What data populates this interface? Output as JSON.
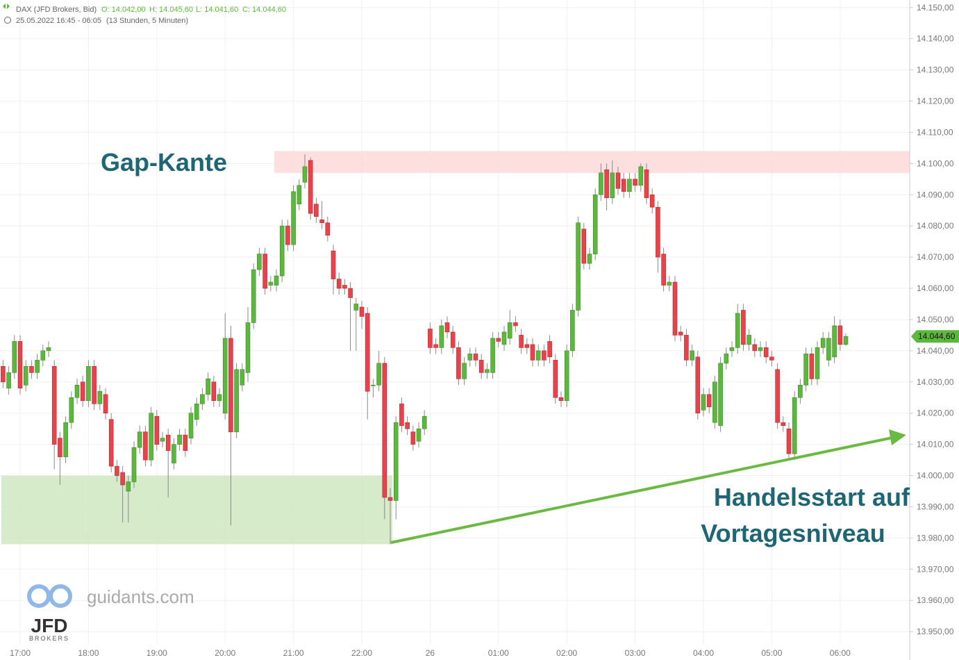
{
  "chart_data": {
    "type": "candlestick",
    "title": "DAX (JFD Brokers, Bid)",
    "ohlc_labels": [
      "O: 14.042,00",
      "H: 14.045,60",
      "L: 14.041,60",
      "C: 14.044,60"
    ],
    "period": "25.05.2022 16:45 - 06:05",
    "duration": "(13 Stunden, 5 Minuten)",
    "last_label": "14.044,60",
    "up_color": "#5cb83c",
    "down_color": "#e8424a",
    "categories": [
      null,
      null,
      null,
      "17:00",
      null,
      null,
      null,
      null,
      null,
      null,
      null,
      null,
      null,
      null,
      null,
      "18:00",
      null,
      null,
      null,
      null,
      null,
      null,
      null,
      null,
      null,
      null,
      null,
      "19:00",
      null,
      null,
      null,
      null,
      null,
      null,
      null,
      null,
      null,
      null,
      null,
      "20:00",
      null,
      null,
      null,
      null,
      null,
      null,
      null,
      null,
      null,
      null,
      null,
      "21:00",
      null,
      null,
      null,
      null,
      null,
      null,
      null,
      null,
      null,
      null,
      null,
      "22:00",
      null,
      null,
      null,
      null,
      null,
      null,
      null,
      null,
      null,
      null,
      null,
      "26",
      null,
      null,
      null,
      null,
      null,
      null,
      null,
      null,
      null,
      null,
      null,
      "01:00",
      null,
      null,
      null,
      null,
      null,
      null,
      null,
      null,
      null,
      null,
      null,
      "02:00",
      null,
      null,
      null,
      null,
      null,
      null,
      null,
      null,
      null,
      null,
      null,
      "03:00",
      null,
      null,
      null,
      null,
      null,
      null,
      null,
      null,
      null,
      null,
      null,
      "04:00",
      null,
      null,
      null,
      null,
      null,
      null,
      null,
      null,
      null,
      null,
      null,
      "05:00",
      null,
      null,
      null,
      null,
      null,
      null,
      null,
      null,
      null,
      null,
      null,
      "06:00",
      null
    ],
    "open": [
      14035,
      14028,
      14033,
      14043,
      14029,
      14035,
      14033,
      14037,
      14040,
      14035,
      14012,
      14006,
      14017,
      14025,
      14030,
      14024,
      14035,
      14023,
      14026,
      14018,
      14003,
      14001,
      13995,
      13998,
      14009,
      14014,
      14005,
      14019,
      14011,
      14013,
      14004,
      14010,
      14013,
      14012,
      14018,
      14023,
      14026,
      14030,
      14024,
      14020,
      14044,
      14014,
      14029,
      14033,
      14049,
      14066,
      14071,
      14061,
      14061,
      14064,
      14080,
      14074,
      14087,
      14094,
      14101,
      14087,
      14082,
      14081,
      14072,
      14063,
      14061,
      14060,
      14053,
      14054,
      14052,
      14029,
      14029,
      14036,
      13993,
      13992,
      14023,
      14017,
      14014,
      14011,
      14015,
      14047,
      14042,
      14041,
      14049,
      14046,
      14041,
      14031,
      14037,
      14039,
      14037,
      14033,
      14033,
      14044,
      14042,
      14044,
      14049,
      14045,
      14042,
      14042,
      14037,
      14040,
      14043,
      14037,
      14025,
      14024,
      14040,
      14053,
      14079,
      14068,
      14071,
      14090,
      14098,
      14089,
      14097,
      14095,
      14091,
      14095,
      14093,
      14098,
      14090,
      14086,
      14071,
      14061,
      14062,
      14046,
      14045,
      14037,
      14038,
      14021,
      14026,
      14017,
      14016,
      14036,
      14040,
      14041,
      14053,
      14042,
      14042,
      14040,
      14041,
      14038,
      14034,
      14017,
      14015,
      14007,
      14025,
      14029,
      14039,
      14031,
      14041,
      14037,
      14038,
      14048,
      14042
    ],
    "high": [
      14037,
      14035,
      14045,
      14045,
      14037,
      14037,
      14039,
      14042,
      14043,
      14037,
      14014,
      14019,
      14027,
      14031,
      14032,
      14037,
      14037,
      14029,
      14028,
      14020,
      14005,
      14003,
      14000,
      14011,
      14016,
      14016,
      14022,
      14021,
      14014,
      14015,
      14012,
      14015,
      14015,
      14022,
      14025,
      14028,
      14033,
      14032,
      14028,
      14052,
      14048,
      14036,
      14036,
      14054,
      14068,
      14073,
      14073,
      14064,
      14066,
      14082,
      14082,
      14093,
      14095,
      14103,
      14102,
      14089,
      14088,
      14083,
      14074,
      14065,
      14063,
      14062,
      14057,
      14056,
      14054,
      14031,
      14040,
      14038,
      13996,
      14019,
      14025,
      14019,
      14016,
      14017,
      14021,
      14049,
      14044,
      14050,
      14051,
      14048,
      14043,
      14038,
      14041,
      14041,
      14039,
      14036,
      14046,
      14046,
      14048,
      14053,
      14051,
      14047,
      14044,
      14044,
      14042,
      14042,
      14045,
      14039,
      14027,
      14042,
      14055,
      14083,
      14081,
      14073,
      14092,
      14100,
      14100,
      14101,
      14099,
      14097,
      14097,
      14097,
      14100,
      14100,
      14092,
      14088,
      14073,
      14064,
      14064,
      14048,
      14047,
      14042,
      14040,
      14028,
      14028,
      14032,
      14038,
      14041,
      14043,
      14055,
      14055,
      14047,
      14044,
      14043,
      14043,
      14040,
      14036,
      14019,
      14017,
      14027,
      14031,
      14041,
      14041,
      14043,
      14046,
      14046,
      14051,
      14050,
      14045.6
    ],
    "low": [
      14028,
      14026,
      14031,
      14026,
      14027,
      14031,
      14031,
      14035,
      14038,
      14002,
      13997,
      14004,
      14015,
      14023,
      14022,
      14022,
      14021,
      14021,
      14018,
      14001,
      13998,
      13985,
      13985,
      13996,
      14007,
      14003,
      14003,
      14008,
      14009,
      13993,
      14002,
      14008,
      14006,
      14010,
      14016,
      14021,
      14024,
      14022,
      14022,
      14018,
      13984,
      14012,
      14027,
      14030,
      14047,
      14064,
      14058,
      14059,
      14059,
      14062,
      14072,
      14072,
      14085,
      14092,
      14082,
      14081,
      14079,
      14075,
      14058,
      14058,
      14058,
      14040,
      14040,
      14047,
      14018,
      14025,
      14027,
      13986,
      13978,
      13986,
      14014,
      14013,
      14008,
      14009,
      14013,
      14039,
      14039,
      14039,
      14044,
      14039,
      14029,
      14029,
      14035,
      14035,
      14031,
      14031,
      14031,
      14041,
      14040,
      14042,
      14046,
      14039,
      14039,
      14035,
      14035,
      14035,
      14036,
      14023,
      14022,
      14022,
      14038,
      14051,
      14066,
      14066,
      14069,
      14088,
      14085,
      14087,
      14090,
      14089,
      14089,
      14091,
      14091,
      14087,
      14084,
      14065,
      14059,
      14059,
      14043,
      14043,
      14035,
      14035,
      14018,
      14019,
      14020,
      14015,
      14014,
      14034,
      14038,
      14039,
      14040,
      14040,
      14038,
      14038,
      14036,
      14035,
      14015,
      14014,
      14005,
      14005,
      14023,
      14027,
      14029,
      14029,
      14039,
      14035,
      14036,
      14040,
      14041.6
    ],
    "close": [
      14030,
      14033,
      14043,
      14028,
      14035,
      14033,
      14037,
      14040,
      14041,
      14010,
      14006,
      14017,
      14025,
      14029,
      14024,
      14035,
      14023,
      14027,
      14020,
      14003,
      14000,
      13997,
      13998,
      14009,
      14014,
      14005,
      14020,
      14010,
      14012,
      14008,
      14010,
      14013,
      14008,
      14020,
      14023,
      14026,
      14031,
      14024,
      14026,
      14044,
      14014,
      14034,
      14034,
      14049,
      14066,
      14071,
      14060,
      14062,
      14064,
      14080,
      14074,
      14091,
      14093,
      14099,
      14084,
      14083,
      14081,
      14077,
      14063,
      14060,
      14060,
      14057,
      14055,
      14051,
      14027,
      14029,
      14036,
      13993,
      13992,
      14017,
      14016,
      14015,
      14010,
      14015,
      14019,
      14041,
      14041,
      14048,
      14046,
      14041,
      14031,
      14036,
      14039,
      14037,
      14033,
      14034,
      14044,
      14043,
      14046,
      14049,
      14048,
      14041,
      14041,
      14037,
      14040,
      14037,
      14038,
      14025,
      14024,
      14040,
      14053,
      14081,
      14068,
      14071,
      14090,
      14097,
      14089,
      14097,
      14092,
      14091,
      14095,
      14093,
      14099,
      14089,
      14086,
      14070,
      14061,
      14062,
      14045,
      14045,
      14037,
      14040,
      14020,
      14026,
      14022,
      14030,
      14036,
      14039,
      14041,
      14052,
      14042,
      14045,
      14040,
      14041,
      14038,
      14037,
      14017,
      14016,
      14007,
      14025,
      14029,
      14039,
      14031,
      14041,
      14044,
      14044,
      14048,
      14042,
      14044.6
    ],
    "ylim": [
      13945.8,
      14152.4
    ],
    "yticks": [
      {
        "value": 13950,
        "label": "13.950,00"
      },
      {
        "value": 13960,
        "label": "13.960,00"
      },
      {
        "value": 13970,
        "label": "13.970,00"
      },
      {
        "value": 13980,
        "label": "13.980,00"
      },
      {
        "value": 13990,
        "label": "13.990,00"
      },
      {
        "value": 14000,
        "label": "14.000,00"
      },
      {
        "value": 14010,
        "label": "14.010,00"
      },
      {
        "value": 14020,
        "label": "14.020,00"
      },
      {
        "value": 14030,
        "label": "14.030,00"
      },
      {
        "value": 14040,
        "label": "14.040,00"
      },
      {
        "value": 14050,
        "label": "14.050,00"
      },
      {
        "value": 14060,
        "label": "14.060,00"
      },
      {
        "value": 14070,
        "label": "14.070,00"
      },
      {
        "value": 14080,
        "label": "14.080,00"
      },
      {
        "value": 14090,
        "label": "14.090,00"
      },
      {
        "value": 14100,
        "label": "14.100,00"
      },
      {
        "value": 14110,
        "label": "14.110,00"
      },
      {
        "value": 14120,
        "label": "14.120,00"
      },
      {
        "value": 14130,
        "label": "14.130,00"
      },
      {
        "value": 14140,
        "label": "14.140,00"
      },
      {
        "value": 14150,
        "label": "14.150,00"
      }
    ],
    "grid": true,
    "zones": [
      {
        "label": "Gap-Kante",
        "ymin": 14097,
        "ymax": 14104,
        "color": "#fdd9d9"
      },
      {
        "label_lines": [
          "Handelsstart auf",
          "Vortagesniveau"
        ],
        "ymin": 13978,
        "ymax": 14000,
        "color": "#cfe8bf"
      }
    ],
    "branding": {
      "site": "guidants.com",
      "logo": "JFD",
      "logo_sub": "BROKERS"
    }
  }
}
